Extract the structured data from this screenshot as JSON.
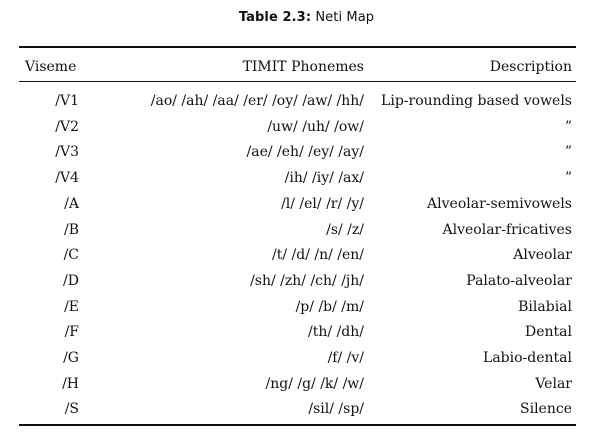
{
  "caption": {
    "label": "Table 2.3:",
    "title": "Neti Map"
  },
  "table": {
    "headers": {
      "viseme": "Viseme",
      "phonemes": "TIMIT Phonemes",
      "description": "Description"
    },
    "rows": [
      {
        "viseme": "/V1",
        "phonemes": "/ao/ /ah/ /aa/ /er/ /oy/ /aw/ /hh/",
        "description": "Lip-rounding based vowels"
      },
      {
        "viseme": "/V2",
        "phonemes": "/uw/ /uh/ /ow/",
        "description": "”"
      },
      {
        "viseme": "/V3",
        "phonemes": "/ae/ /eh/ /ey/ /ay/",
        "description": "”"
      },
      {
        "viseme": "/V4",
        "phonemes": "/ih/ /iy/ /ax/",
        "description": "”"
      },
      {
        "viseme": "/A",
        "phonemes": "/l/ /el/ /r/ /y/",
        "description": "Alveolar-semivowels"
      },
      {
        "viseme": "/B",
        "phonemes": "/s/ /z/",
        "description": "Alveolar-fricatives"
      },
      {
        "viseme": "/C",
        "phonemes": "/t/ /d/ /n/ /en/",
        "description": "Alveolar"
      },
      {
        "viseme": "/D",
        "phonemes": "/sh/ /zh/ /ch/ /jh/",
        "description": "Palato-alveolar"
      },
      {
        "viseme": "/E",
        "phonemes": "/p/ /b/ /m/",
        "description": "Bilabial"
      },
      {
        "viseme": "/F",
        "phonemes": "/th/ /dh/",
        "description": "Dental"
      },
      {
        "viseme": "/G",
        "phonemes": "/f/ /v/",
        "description": "Labio-dental"
      },
      {
        "viseme": "/H",
        "phonemes": "/ng/ /g/ /k/ /w/",
        "description": "Velar"
      },
      {
        "viseme": "/S",
        "phonemes": "/sil/ /sp/",
        "description": "Silence"
      }
    ]
  }
}
